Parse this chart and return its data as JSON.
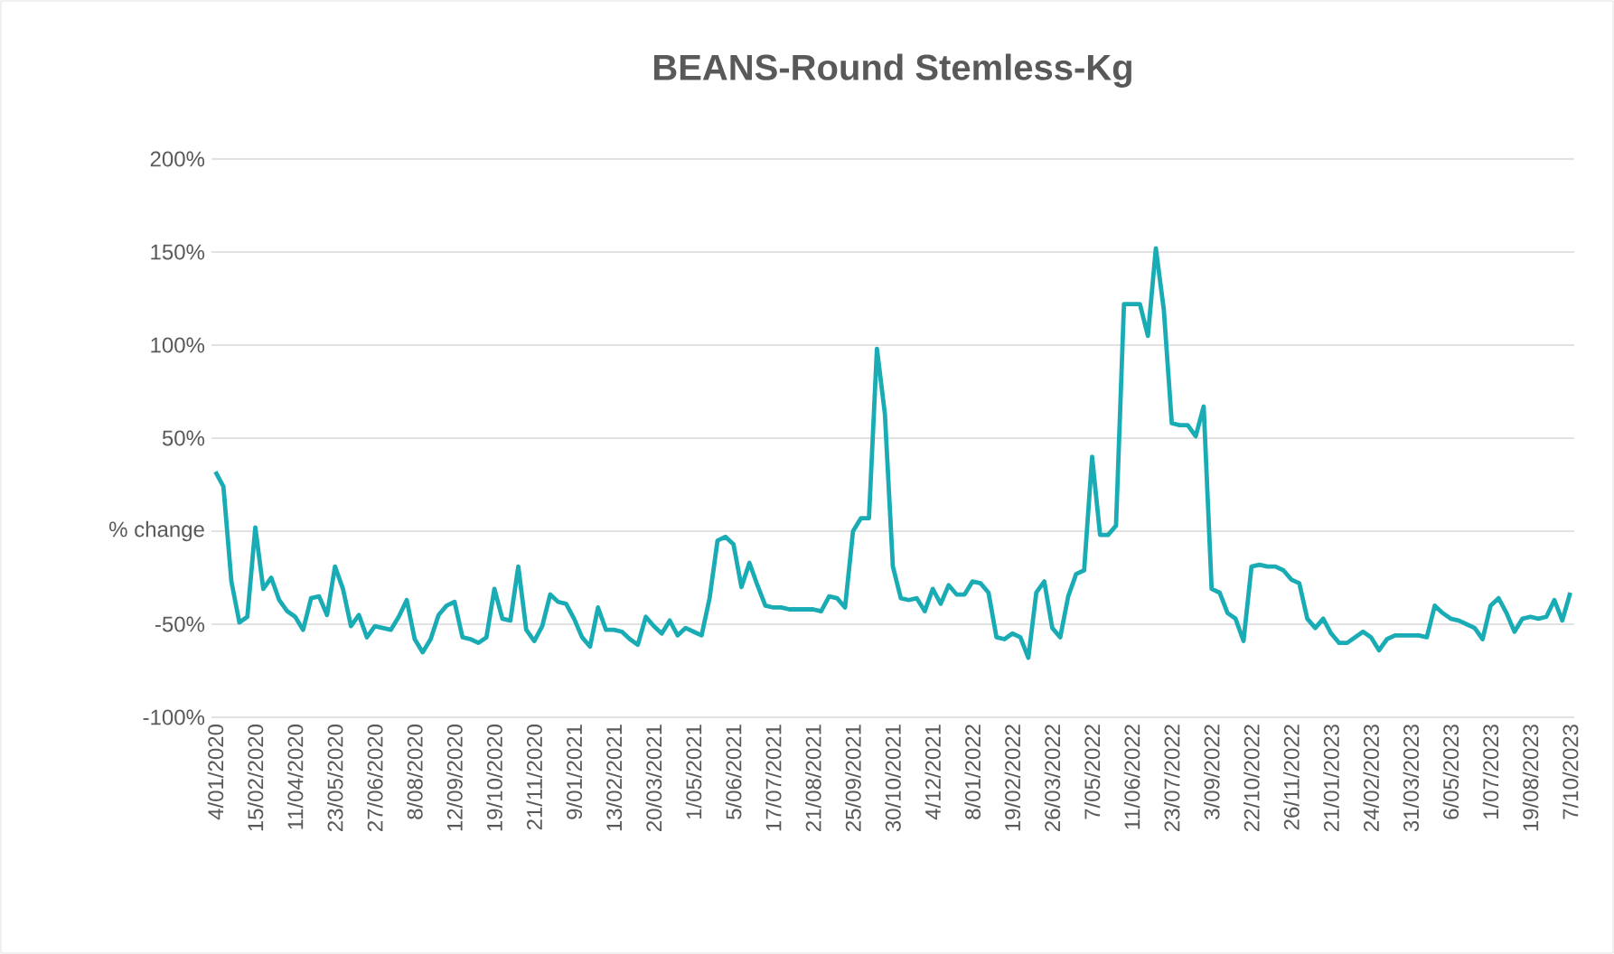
{
  "chart_data": {
    "type": "line",
    "title": "BEANS-Round Stemless-Kg",
    "categories": [
      "4/01/2020",
      null,
      null,
      null,
      null,
      "15/02/2020",
      null,
      null,
      null,
      null,
      "11/04/2020",
      null,
      null,
      null,
      null,
      "23/05/2020",
      null,
      null,
      null,
      null,
      "27/06/2020",
      null,
      null,
      null,
      null,
      "8/08/2020",
      null,
      null,
      null,
      null,
      "12/09/2020",
      null,
      null,
      null,
      null,
      "19/10/2020",
      null,
      null,
      null,
      null,
      "21/11/2020",
      null,
      null,
      null,
      null,
      "9/01/2021",
      null,
      null,
      null,
      null,
      "13/02/2021",
      null,
      null,
      null,
      null,
      "20/03/2021",
      null,
      null,
      null,
      null,
      "1/05/2021",
      null,
      null,
      null,
      null,
      "5/06/2021",
      null,
      null,
      null,
      null,
      "17/07/2021",
      null,
      null,
      null,
      null,
      "21/08/2021",
      null,
      null,
      null,
      null,
      "25/09/2021",
      null,
      null,
      null,
      null,
      "30/10/2021",
      null,
      null,
      null,
      null,
      "4/12/2021",
      null,
      null,
      null,
      null,
      "8/01/2022",
      null,
      null,
      null,
      null,
      "19/02/2022",
      null,
      null,
      null,
      null,
      "26/03/2022",
      null,
      null,
      null,
      null,
      "7/05/2022",
      null,
      null,
      null,
      null,
      "11/06/2022",
      null,
      null,
      null,
      null,
      "23/07/2022",
      null,
      null,
      null,
      null,
      "3/09/2022",
      null,
      null,
      null,
      null,
      "22/10/2022",
      null,
      null,
      null,
      null,
      "26/11/2022",
      null,
      null,
      null,
      null,
      "21/01/2023",
      null,
      null,
      null,
      null,
      "24/02/2023",
      null,
      null,
      null,
      null,
      "31/03/2023",
      null,
      null,
      null,
      null,
      "6/05/2023",
      null,
      null,
      null,
      null,
      "1/07/2023",
      null,
      null,
      null,
      null,
      "19/08/2023",
      null,
      null,
      null,
      null,
      "7/10/2023"
    ],
    "values": [
      32,
      24,
      -27,
      -49,
      -46,
      2,
      -31,
      -25,
      -37,
      -43,
      -46,
      -53,
      -36,
      -35,
      -45,
      -19,
      -31,
      -51,
      -45,
      -57,
      -51,
      -52,
      -53,
      -46,
      -37,
      -58,
      -65,
      -58,
      -45,
      -40,
      -38,
      -57,
      -58,
      -60,
      -57,
      -31,
      -47,
      -48,
      -19,
      -53,
      -59,
      -51,
      -34,
      -38,
      -39,
      -47,
      -57,
      -62,
      -41,
      -53,
      -53,
      -54,
      -58,
      -61,
      -46,
      -51,
      -55,
      -48,
      -56,
      -52,
      -54,
      -56,
      -36,
      -5,
      -3,
      -7,
      -30,
      -17,
      -29,
      -40,
      -41,
      -41,
      -42,
      -42,
      -42,
      -42,
      -43,
      -35,
      -36,
      -41,
      0,
      7,
      7,
      98,
      63,
      -19,
      -36,
      -37,
      -36,
      -43,
      -31,
      -39,
      -29,
      -34,
      -34,
      -27,
      -28,
      -33,
      -57,
      -58,
      -55,
      -57,
      -68,
      -33,
      -27,
      -52,
      -57,
      -35,
      -23,
      -21,
      40,
      -2,
      -2,
      3,
      122,
      122,
      122,
      105,
      152,
      119,
      58,
      57,
      57,
      51,
      67,
      -31,
      -33,
      -44,
      -47,
      -59,
      -19,
      -18,
      -19,
      -19,
      -21,
      -26,
      -28,
      -47,
      -52,
      -47,
      -55,
      -60,
      -60,
      -57,
      -54,
      -57,
      -64,
      -58,
      -56,
      -56,
      -56,
      -56,
      -57,
      -40,
      -44,
      -47,
      -48,
      -50,
      -52,
      -58,
      -40,
      -36,
      -44,
      -54,
      -47,
      -46,
      -47,
      -46,
      -37,
      -48,
      -33
    ],
    "color": "#1aacb4",
    "ylim": [
      -100,
      200
    ],
    "yticks": [
      {
        "value": -100,
        "label": "-100%"
      },
      {
        "value": -50,
        "label": "-50%"
      },
      {
        "value": 0,
        "label": "% change"
      },
      {
        "value": 50,
        "label": "50%"
      },
      {
        "value": 100,
        "label": "100%"
      },
      {
        "value": 150,
        "label": "150%"
      },
      {
        "value": 200,
        "label": "200%"
      }
    ],
    "grid": "y"
  }
}
